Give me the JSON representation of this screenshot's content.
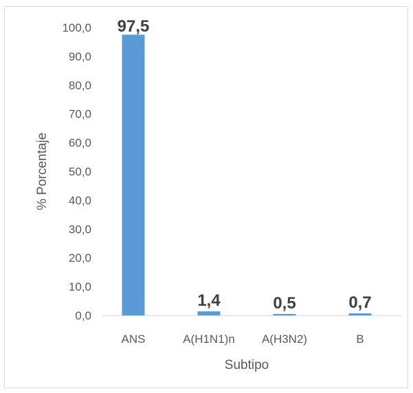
{
  "chart_data": {
    "type": "bar",
    "categories": [
      "ANS",
      "A(H1N1)n",
      "A(H3N2)",
      "B"
    ],
    "values": [
      97.5,
      1.4,
      0.5,
      0.7
    ],
    "data_labels": [
      "97,5",
      "1,4",
      "0,5",
      "0,7"
    ],
    "y_ticks": [
      "0,0",
      "10,0",
      "20,0",
      "30,0",
      "40,0",
      "50,0",
      "60,0",
      "70,0",
      "80,0",
      "90,0",
      "100,0"
    ],
    "xlabel": "Subtipo",
    "ylabel": "% Porcentaje",
    "ylim": [
      0,
      100
    ],
    "grid": false,
    "legend": "none",
    "bar_color": "#5b9bd5"
  }
}
